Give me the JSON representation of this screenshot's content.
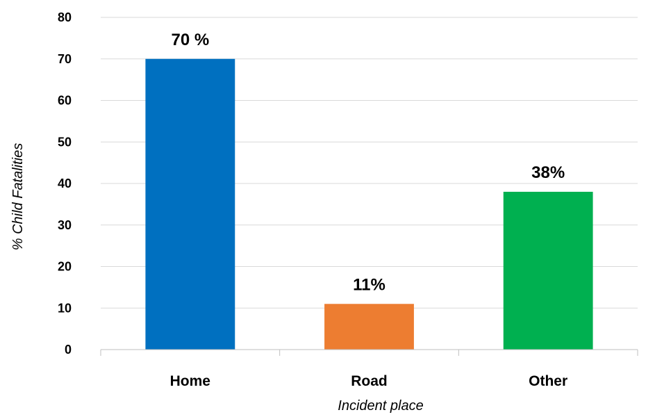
{
  "chart_data": {
    "type": "bar",
    "categories": [
      "Home",
      "Road",
      "Other"
    ],
    "values": [
      70,
      11,
      38
    ],
    "data_labels": [
      "70 %",
      "11%",
      "38%"
    ],
    "colors": [
      "#0070C0",
      "#ED7D31",
      "#00B050"
    ],
    "xlabel": "Incident place",
    "ylabel": "% Child Fatalities",
    "ylim": [
      0,
      80
    ],
    "yticks": [
      0,
      10,
      20,
      30,
      40,
      50,
      60,
      70,
      80
    ],
    "grid": true,
    "legend": false
  }
}
